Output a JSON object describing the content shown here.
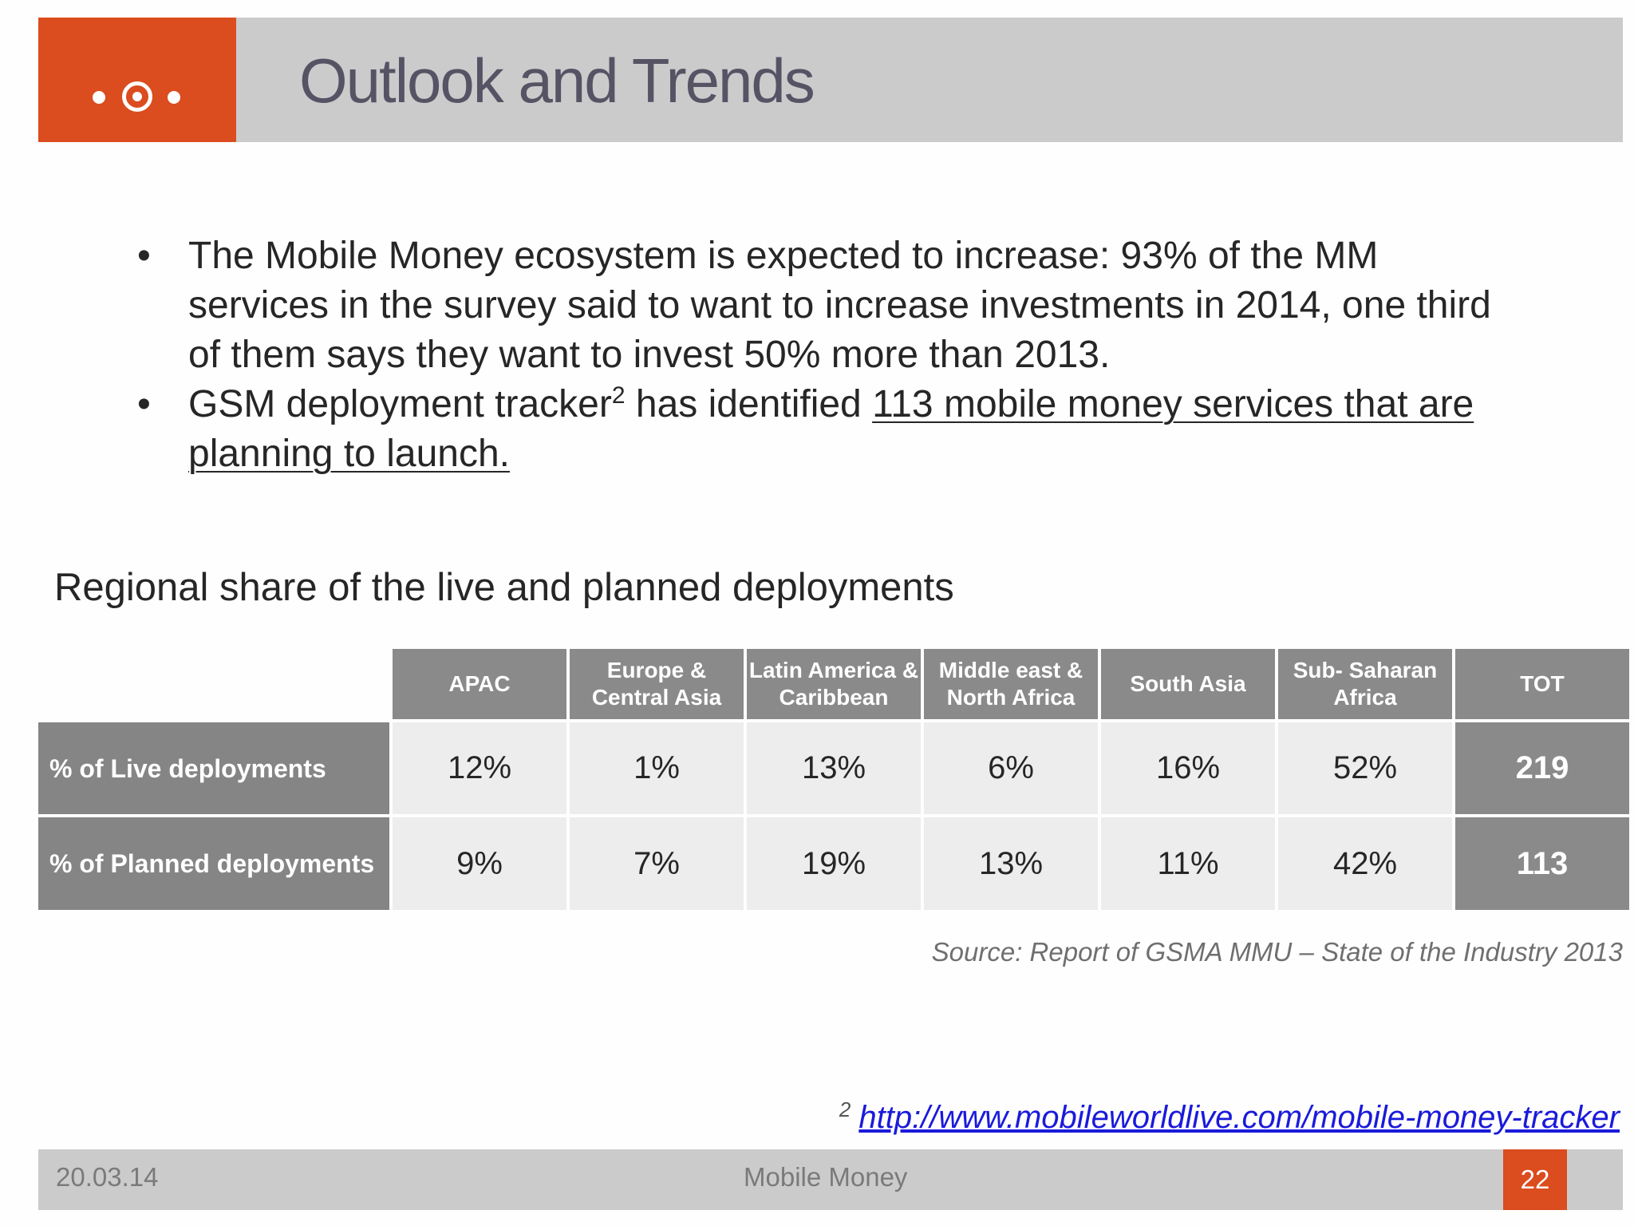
{
  "header": {
    "title": "Outlook and Trends",
    "logo_icon": "dot-target-dot-icon",
    "accent_color": "#db4c1e"
  },
  "bullets": {
    "item1": "The Mobile Money ecosystem is expected to increase: 93% of the MM services in the survey said to want to increase investments in 2014, one third of them says they want to invest 50% more than 2013.",
    "item2_pre": "GSM deployment tracker",
    "item2_sup": "2",
    "item2_mid": " has identified ",
    "item2_underlined": "113 mobile money services that are planning to launch."
  },
  "section": {
    "title": "Regional share of the live and planned deployments"
  },
  "table": {
    "headers": [
      "APAC",
      "Europe & Central Asia",
      "Latin America & Caribbean",
      "Middle east & North Africa",
      "South Asia",
      "Sub- Saharan Africa",
      "TOT"
    ],
    "rows": [
      {
        "label": "% of Live deployments",
        "values": [
          "12%",
          "1%",
          "13%",
          "6%",
          "16%",
          "52%"
        ],
        "total": "219"
      },
      {
        "label": "% of Planned deployments",
        "values": [
          "9%",
          "7%",
          "19%",
          "13%",
          "11%",
          "42%"
        ],
        "total": "113"
      }
    ]
  },
  "source": "Source: Report of GSMA MMU – State of the Industry 2013",
  "footnote": {
    "number": "2",
    "link": "http://www.mobileworldlive.com/mobile-money-tracker"
  },
  "footer": {
    "date": "20.03.14",
    "center": "Mobile Money",
    "page": "22"
  }
}
